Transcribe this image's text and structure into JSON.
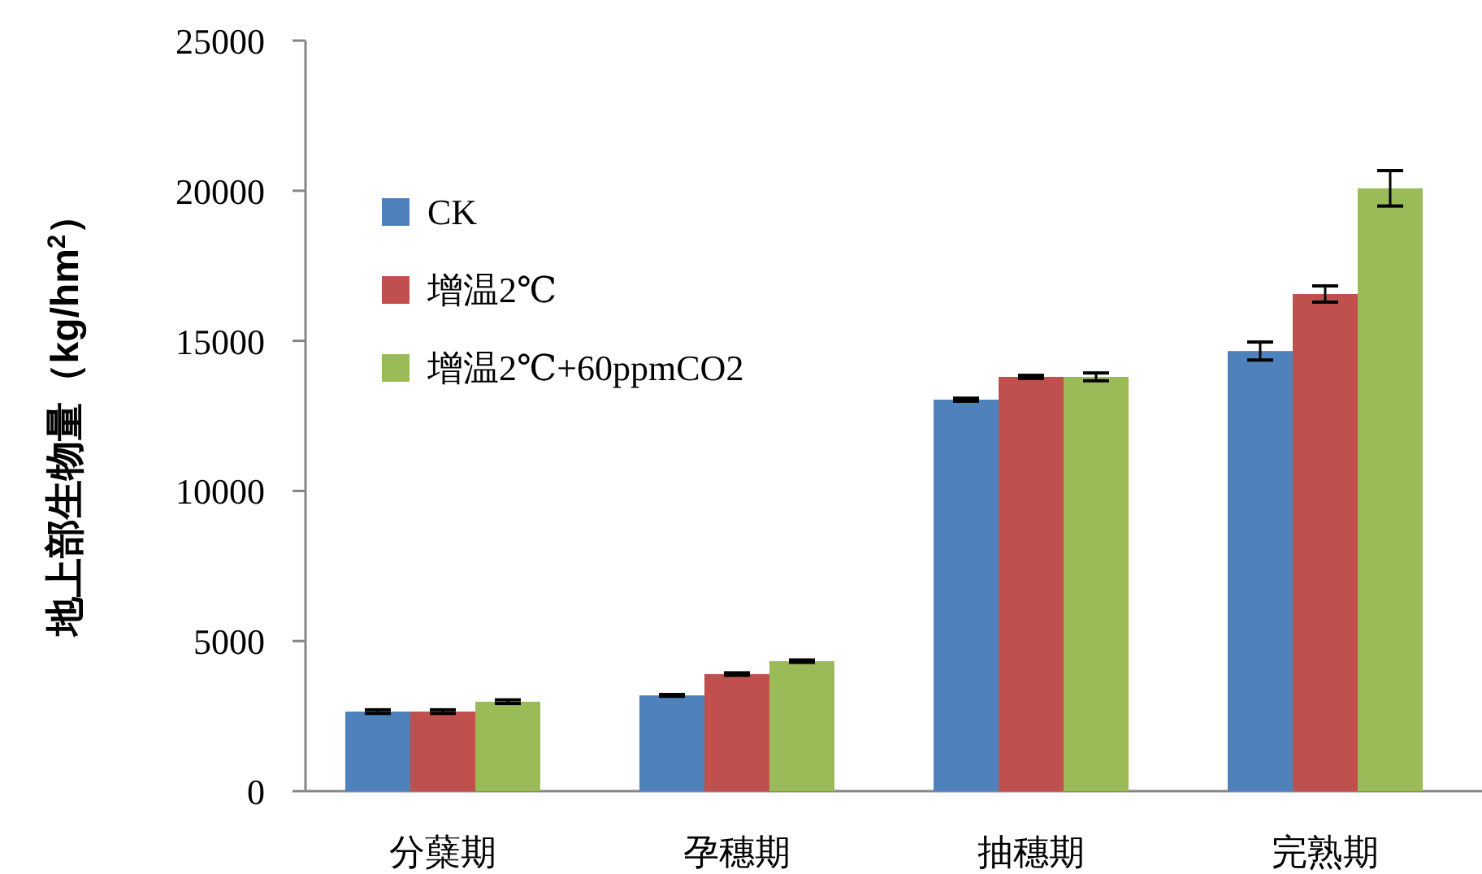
{
  "chart_data": {
    "type": "bar",
    "ylabel": "地上部生物量（kg/hm$^{2}$）",
    "categories": [
      "分蘖期",
      "孕穗期",
      "抽穗期",
      "完熟期"
    ],
    "series": [
      {
        "name": "CK",
        "color": "#4f81bd",
        "values": [
          2650,
          3190,
          13040,
          14660
        ],
        "errors": [
          60,
          30,
          50,
          300
        ]
      },
      {
        "name": "增温2℃",
        "color": "#c0504d",
        "values": [
          2650,
          3900,
          13800,
          16560
        ],
        "errors": [
          60,
          40,
          50,
          270
        ]
      },
      {
        "name": "增温2℃+60ppmCO2",
        "color": "#9bbb59",
        "values": [
          2980,
          4330,
          13800,
          20080
        ],
        "errors": [
          60,
          40,
          130,
          590
        ]
      }
    ],
    "ylim": [
      0,
      25000
    ],
    "yticks": [
      0,
      5000,
      10000,
      15000,
      20000,
      25000
    ],
    "grid": false,
    "legend": "top left"
  }
}
